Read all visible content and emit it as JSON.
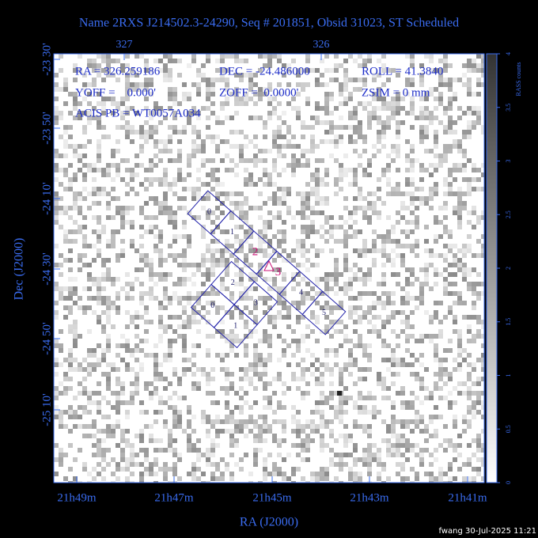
{
  "header": {
    "title": "Name 2RXS J214502.3-24290, Seq # 201851, Obsid 31023, ST Scheduled"
  },
  "info": {
    "ra": "RA = 326.259186",
    "dec": "DEC = -24.486000",
    "roll": "ROLL = 41.3840",
    "yoff": "YOFF =    0.000'",
    "zoff": "ZOFF =  0.0000'",
    "zsim": "ZSIM = 0 mm",
    "acis_pb": "ACIS PB = WT0057A034"
  },
  "axes": {
    "x_title": "RA (J2000)",
    "y_title": "Dec (J2000)",
    "top_ticks": [
      "327",
      "326"
    ],
    "bottom_ticks": [
      "21h49m",
      "21h47m",
      "21h45m",
      "21h43m",
      "21h41m"
    ],
    "left_ticks": [
      "-23 30'",
      "-23 50'",
      "-24 10'",
      "-24 30'",
      "-24 50'",
      "-25 10'"
    ]
  },
  "colorbar": {
    "title": "RASS counts",
    "ticks": [
      "0",
      "0.5",
      "1",
      "1.5",
      "2",
      "2.5",
      "3",
      "3.5",
      "4"
    ]
  },
  "chips": {
    "acis_s": [
      "0",
      "1",
      "2",
      "3",
      "4",
      "5"
    ],
    "acis_i": [
      "0",
      "1",
      "2",
      "3"
    ]
  },
  "footer": "fwang 30-Jul-2025 11:21"
}
